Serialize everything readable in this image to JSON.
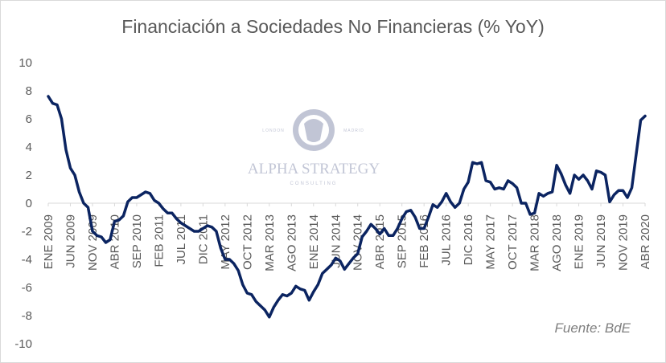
{
  "chart_data": {
    "type": "line",
    "title": "Financiación a Sociedades No Financieras (% YoY)",
    "source": "Fuente: BdE",
    "ylim": [
      -10,
      10
    ],
    "y_ticks": [
      -10,
      -8,
      -6,
      -4,
      -2,
      0,
      2,
      4,
      6,
      8,
      10
    ],
    "x_tick_labels": [
      "ENE 2009",
      "JUN 2009",
      "NOV 2009",
      "ABR 2010",
      "SEP 2010",
      "FEB 2011",
      "JUL 2011",
      "DIC 2011",
      "MAY 2012",
      "OCT 2012",
      "MAR 2013",
      "AGO 2013",
      "ENE 2014",
      "JUN 2014",
      "NOV 2014",
      "ABR 2015",
      "SEP 2015",
      "FEB 2016",
      "JUL 2016",
      "DIC 2016",
      "MAY 2017",
      "OCT 2017",
      "MAR 2018",
      "AGO 2018",
      "ENE 2019",
      "JUN 2019",
      "NOV 2019",
      "ABR 2020"
    ],
    "x_start": "ENE 2009",
    "x_frequency": "monthly",
    "grid": false,
    "legend": "none",
    "line_color": "#0b2461",
    "values": [
      7.6,
      7.1,
      7.0,
      6.0,
      3.8,
      2.5,
      2.0,
      0.8,
      0.0,
      -0.3,
      -2.0,
      -2.3,
      -2.4,
      -2.8,
      -2.6,
      -1.3,
      -1.2,
      -0.9,
      0.1,
      0.4,
      0.4,
      0.6,
      0.8,
      0.7,
      0.2,
      0.0,
      -0.4,
      -0.7,
      -0.7,
      -1.1,
      -1.4,
      -1.6,
      -1.8,
      -2.0,
      -2.0,
      -1.8,
      -1.6,
      -1.7,
      -2.0,
      -3.2,
      -4.0,
      -4.0,
      -4.3,
      -4.8,
      -5.8,
      -6.4,
      -6.5,
      -7.0,
      -7.3,
      -7.6,
      -8.1,
      -7.4,
      -6.9,
      -6.5,
      -6.6,
      -6.4,
      -5.9,
      -6.1,
      -6.2,
      -6.9,
      -6.3,
      -5.8,
      -5.0,
      -4.7,
      -4.4,
      -3.9,
      -4.1,
      -4.7,
      -4.3,
      -3.9,
      -3.6,
      -2.4,
      -2.0,
      -1.5,
      -1.8,
      -2.2,
      -1.8,
      -2.3,
      -2.3,
      -1.8,
      -1.1,
      -0.6,
      -0.5,
      -1.0,
      -1.8,
      -1.8,
      -1.0,
      -0.1,
      -0.3,
      0.1,
      0.7,
      0.1,
      -0.3,
      0.0,
      1.0,
      1.5,
      2.9,
      2.8,
      2.9,
      1.6,
      1.5,
      1.0,
      1.1,
      1.0,
      1.6,
      1.4,
      1.1,
      0.0,
      0.0,
      -0.8,
      -0.7,
      0.7,
      0.5,
      0.7,
      0.8,
      2.7,
      2.1,
      1.3,
      0.7,
      2.0,
      1.7,
      2.0,
      1.6,
      1.0,
      2.3,
      2.2,
      2.0,
      0.1,
      0.6,
      0.9,
      0.9,
      0.4,
      1.1,
      3.5,
      5.9,
      6.2
    ]
  },
  "watermark": {
    "brand": "ALPHA STRATEGY",
    "tagline": "CONSULTING",
    "left_city": "LONDON",
    "right_city": "MADRID",
    "color": "#8f96b3"
  }
}
